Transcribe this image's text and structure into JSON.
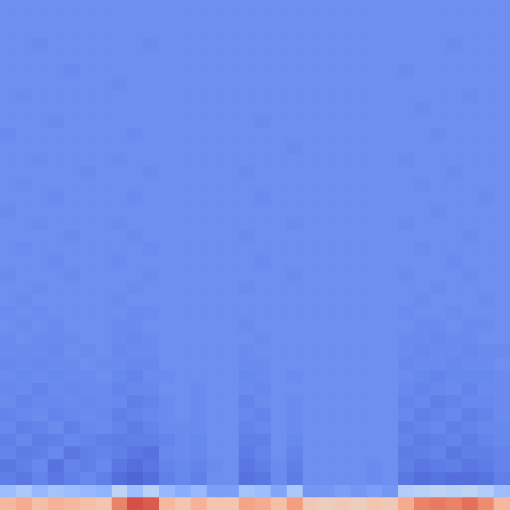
{
  "chart_data": {
    "type": "heatmap",
    "tick_labels": false,
    "color_range": [
      0,
      100
    ],
    "cells": [
      [
        66,
        70,
        64,
        68,
        66,
        64,
        62,
        80,
        90,
        88,
        66,
        62,
        68,
        62,
        62,
        72,
        70,
        64,
        74,
        60,
        58,
        60,
        58,
        62,
        60,
        70,
        80,
        82,
        80,
        84,
        78,
        66
      ],
      [
        30,
        34,
        28,
        32,
        30,
        28,
        26,
        40,
        30,
        38,
        28,
        24,
        28,
        20,
        20,
        32,
        30,
        22,
        34,
        18,
        18,
        20,
        18,
        20,
        18,
        36,
        38,
        40,
        38,
        40,
        36,
        30
      ],
      [
        12,
        10,
        13,
        10,
        12,
        14,
        12,
        8,
        6,
        8,
        12,
        14,
        12,
        16,
        16,
        9,
        10,
        15,
        11,
        16,
        16,
        16,
        16,
        15,
        16,
        10,
        8,
        9,
        8,
        8,
        9,
        12
      ],
      [
        10,
        12,
        14,
        9,
        13,
        12,
        14,
        10,
        8,
        10,
        13,
        14,
        13,
        15,
        16,
        10,
        12,
        15,
        12,
        16,
        16,
        16,
        16,
        15,
        16,
        12,
        10,
        11,
        12,
        10,
        11,
        13
      ],
      [
        13,
        11,
        12,
        14,
        10,
        12,
        13,
        12,
        10,
        9,
        14,
        15,
        14,
        16,
        16,
        11,
        13,
        16,
        13,
        16,
        16,
        16,
        16,
        16,
        16,
        11,
        12,
        13,
        10,
        12,
        12,
        13
      ],
      [
        12,
        14,
        11,
        12,
        14,
        13,
        12,
        11,
        12,
        12,
        13,
        15,
        14,
        16,
        16,
        12,
        12,
        16,
        14,
        16,
        16,
        16,
        16,
        16,
        16,
        13,
        11,
        12,
        13,
        11,
        13,
        14
      ],
      [
        14,
        12,
        13,
        15,
        12,
        14,
        15,
        13,
        11,
        13,
        15,
        15,
        15,
        16,
        16,
        13,
        14,
        16,
        15,
        16,
        16,
        16,
        16,
        16,
        16,
        12,
        13,
        14,
        12,
        13,
        14,
        14
      ],
      [
        13,
        14,
        15,
        13,
        14,
        15,
        14,
        12,
        13,
        14,
        15,
        16,
        15,
        16,
        16,
        14,
        13,
        16,
        15,
        16,
        16,
        16,
        16,
        16,
        16,
        14,
        12,
        13,
        14,
        12,
        13,
        15
      ],
      [
        15,
        13,
        14,
        14,
        15,
        14,
        15,
        14,
        12,
        13,
        15,
        16,
        15,
        16,
        16,
        13,
        15,
        16,
        15,
        16,
        16,
        16,
        16,
        16,
        16,
        13,
        14,
        12,
        13,
        14,
        14,
        15
      ],
      [
        14,
        15,
        13,
        15,
        14,
        15,
        15,
        13,
        14,
        14,
        16,
        16,
        15,
        16,
        16,
        15,
        14,
        16,
        16,
        16,
        16,
        16,
        16,
        16,
        16,
        14,
        13,
        14,
        15,
        13,
        15,
        15
      ],
      [
        15,
        14,
        15,
        14,
        15,
        15,
        16,
        14,
        13,
        15,
        15,
        16,
        16,
        16,
        16,
        14,
        15,
        16,
        15,
        16,
        16,
        16,
        16,
        16,
        16,
        15,
        14,
        13,
        14,
        14,
        14,
        15
      ],
      [
        14,
        15,
        14,
        15,
        15,
        16,
        15,
        15,
        14,
        14,
        16,
        16,
        16,
        16,
        16,
        15,
        15,
        16,
        16,
        16,
        16,
        16,
        16,
        16,
        16,
        14,
        15,
        15,
        14,
        15,
        15,
        16
      ],
      [
        15,
        15,
        15,
        14,
        16,
        15,
        16,
        14,
        15,
        15,
        16,
        16,
        16,
        16,
        16,
        15,
        16,
        16,
        16,
        16,
        16,
        16,
        16,
        16,
        16,
        15,
        14,
        15,
        15,
        14,
        15,
        15
      ],
      [
        15,
        16,
        15,
        15,
        15,
        16,
        16,
        15,
        14,
        15,
        16,
        16,
        16,
        16,
        16,
        16,
        15,
        16,
        16,
        16,
        16,
        16,
        16,
        16,
        16,
        15,
        15,
        14,
        15,
        15,
        16,
        16
      ],
      [
        16,
        15,
        16,
        15,
        16,
        16,
        16,
        15,
        15,
        16,
        16,
        16,
        16,
        16,
        16,
        15,
        16,
        16,
        16,
        16,
        16,
        16,
        16,
        16,
        16,
        16,
        15,
        15,
        16,
        15,
        15,
        16
      ],
      [
        15,
        16,
        15,
        16,
        16,
        16,
        16,
        16,
        15,
        15,
        16,
        16,
        16,
        16,
        16,
        16,
        16,
        16,
        16,
        16,
        16,
        16,
        16,
        16,
        16,
        15,
        16,
        16,
        15,
        16,
        16,
        16
      ],
      [
        16,
        15,
        16,
        16,
        16,
        16,
        16,
        15,
        16,
        16,
        16,
        16,
        16,
        16,
        16,
        16,
        16,
        16,
        16,
        16,
        16,
        16,
        16,
        16,
        16,
        16,
        15,
        16,
        16,
        16,
        15,
        16
      ],
      [
        16,
        16,
        15,
        16,
        16,
        16,
        16,
        16,
        15,
        16,
        16,
        16,
        16,
        16,
        16,
        15,
        16,
        16,
        16,
        16,
        16,
        16,
        16,
        16,
        16,
        16,
        16,
        15,
        16,
        16,
        16,
        16
      ],
      [
        15,
        16,
        16,
        16,
        15,
        16,
        16,
        16,
        16,
        15,
        16,
        16,
        16,
        16,
        16,
        16,
        16,
        16,
        15,
        16,
        16,
        16,
        16,
        16,
        16,
        15,
        16,
        16,
        16,
        15,
        16,
        16
      ],
      [
        16,
        16,
        16,
        15,
        16,
        16,
        16,
        15,
        16,
        16,
        16,
        16,
        16,
        16,
        16,
        16,
        15,
        16,
        16,
        16,
        16,
        16,
        16,
        16,
        16,
        16,
        16,
        16,
        15,
        16,
        16,
        16
      ],
      [
        16,
        15,
        16,
        16,
        16,
        16,
        16,
        16,
        16,
        15,
        16,
        16,
        16,
        16,
        16,
        16,
        16,
        16,
        16,
        16,
        16,
        16,
        16,
        16,
        16,
        16,
        15,
        16,
        16,
        16,
        16,
        16
      ],
      [
        16,
        16,
        16,
        16,
        15,
        16,
        16,
        16,
        15,
        16,
        16,
        16,
        16,
        16,
        16,
        15,
        16,
        16,
        16,
        16,
        16,
        16,
        16,
        16,
        16,
        16,
        16,
        16,
        16,
        15,
        16,
        16
      ],
      [
        16,
        16,
        15,
        16,
        16,
        16,
        16,
        15,
        16,
        16,
        16,
        16,
        16,
        16,
        16,
        16,
        16,
        16,
        15,
        16,
        16,
        16,
        16,
        16,
        16,
        15,
        16,
        16,
        16,
        16,
        16,
        16
      ],
      [
        15,
        16,
        16,
        16,
        16,
        16,
        16,
        16,
        16,
        16,
        16,
        16,
        16,
        16,
        16,
        16,
        16,
        16,
        16,
        16,
        16,
        16,
        16,
        16,
        16,
        16,
        16,
        15,
        16,
        16,
        16,
        16
      ],
      [
        16,
        16,
        16,
        15,
        16,
        16,
        16,
        16,
        15,
        16,
        16,
        16,
        16,
        16,
        16,
        16,
        15,
        16,
        16,
        16,
        16,
        16,
        16,
        16,
        16,
        16,
        16,
        16,
        16,
        16,
        15,
        16
      ],
      [
        16,
        15,
        16,
        16,
        16,
        16,
        16,
        16,
        16,
        16,
        16,
        16,
        16,
        16,
        16,
        16,
        16,
        16,
        16,
        16,
        16,
        16,
        16,
        16,
        16,
        16,
        15,
        16,
        16,
        16,
        16,
        16
      ],
      [
        16,
        16,
        16,
        16,
        16,
        15,
        16,
        16,
        16,
        15,
        16,
        16,
        16,
        16,
        16,
        15,
        16,
        16,
        16,
        16,
        16,
        16,
        16,
        16,
        16,
        16,
        16,
        16,
        15,
        16,
        16,
        16
      ],
      [
        16,
        16,
        15,
        16,
        16,
        16,
        16,
        15,
        16,
        16,
        16,
        16,
        16,
        16,
        16,
        16,
        16,
        16,
        16,
        16,
        16,
        16,
        16,
        16,
        16,
        15,
        16,
        16,
        16,
        16,
        16,
        16
      ],
      [
        16,
        16,
        16,
        16,
        16,
        16,
        16,
        16,
        16,
        16,
        16,
        16,
        16,
        16,
        16,
        16,
        16,
        16,
        15,
        16,
        16,
        16,
        16,
        16,
        16,
        16,
        16,
        16,
        16,
        16,
        16,
        16
      ],
      [
        15,
        16,
        16,
        16,
        16,
        16,
        16,
        16,
        15,
        16,
        16,
        16,
        16,
        16,
        16,
        16,
        16,
        16,
        16,
        16,
        16,
        16,
        16,
        16,
        16,
        16,
        16,
        15,
        16,
        16,
        16,
        16
      ],
      [
        16,
        16,
        16,
        15,
        16,
        16,
        16,
        16,
        16,
        16,
        16,
        16,
        16,
        16,
        16,
        16,
        15,
        16,
        16,
        16,
        16,
        16,
        16,
        16,
        16,
        16,
        16,
        16,
        16,
        16,
        16,
        16
      ],
      [
        16,
        16,
        16,
        16,
        16,
        16,
        16,
        16,
        16,
        16,
        16,
        16,
        16,
        16,
        16,
        16,
        16,
        16,
        16,
        16,
        16,
        16,
        16,
        16,
        16,
        16,
        15,
        16,
        16,
        16,
        16,
        16
      ],
      [
        16,
        15,
        16,
        16,
        16,
        16,
        16,
        16,
        16,
        16,
        16,
        16,
        16,
        16,
        16,
        16,
        16,
        16,
        16,
        16,
        16,
        16,
        16,
        16,
        16,
        16,
        16,
        16,
        16,
        15,
        16,
        16
      ],
      [
        16,
        16,
        16,
        16,
        16,
        16,
        16,
        15,
        16,
        16,
        16,
        16,
        16,
        16,
        16,
        16,
        16,
        16,
        16,
        16,
        16,
        16,
        16,
        16,
        16,
        16,
        16,
        16,
        16,
        16,
        16,
        16
      ],
      [
        16,
        16,
        16,
        16,
        15,
        16,
        16,
        16,
        16,
        16,
        16,
        16,
        16,
        16,
        16,
        16,
        16,
        16,
        16,
        16,
        16,
        16,
        16,
        16,
        16,
        15,
        16,
        16,
        16,
        16,
        16,
        16
      ],
      [
        16,
        16,
        16,
        16,
        16,
        16,
        16,
        16,
        16,
        16,
        16,
        16,
        16,
        16,
        16,
        16,
        16,
        16,
        16,
        16,
        16,
        16,
        16,
        16,
        16,
        16,
        16,
        16,
        16,
        16,
        16,
        16
      ],
      [
        16,
        16,
        15,
        16,
        16,
        16,
        16,
        16,
        16,
        15,
        16,
        16,
        16,
        16,
        16,
        16,
        16,
        16,
        16,
        16,
        16,
        16,
        16,
        16,
        16,
        16,
        16,
        16,
        15,
        16,
        16,
        16
      ],
      [
        16,
        16,
        16,
        16,
        16,
        16,
        16,
        16,
        16,
        16,
        16,
        16,
        16,
        16,
        16,
        16,
        16,
        16,
        16,
        16,
        16,
        16,
        16,
        16,
        16,
        16,
        16,
        16,
        16,
        16,
        16,
        16
      ],
      [
        16,
        16,
        16,
        16,
        16,
        16,
        16,
        16,
        16,
        16,
        16,
        16,
        16,
        16,
        16,
        16,
        16,
        16,
        16,
        16,
        16,
        16,
        16,
        16,
        16,
        16,
        16,
        16,
        16,
        16,
        16,
        16
      ],
      [
        16,
        16,
        16,
        16,
        16,
        16,
        16,
        16,
        16,
        16,
        16,
        16,
        16,
        16,
        16,
        16,
        16,
        16,
        16,
        16,
        16,
        16,
        16,
        16,
        16,
        16,
        16,
        16,
        16,
        16,
        16,
        16
      ]
    ]
  }
}
